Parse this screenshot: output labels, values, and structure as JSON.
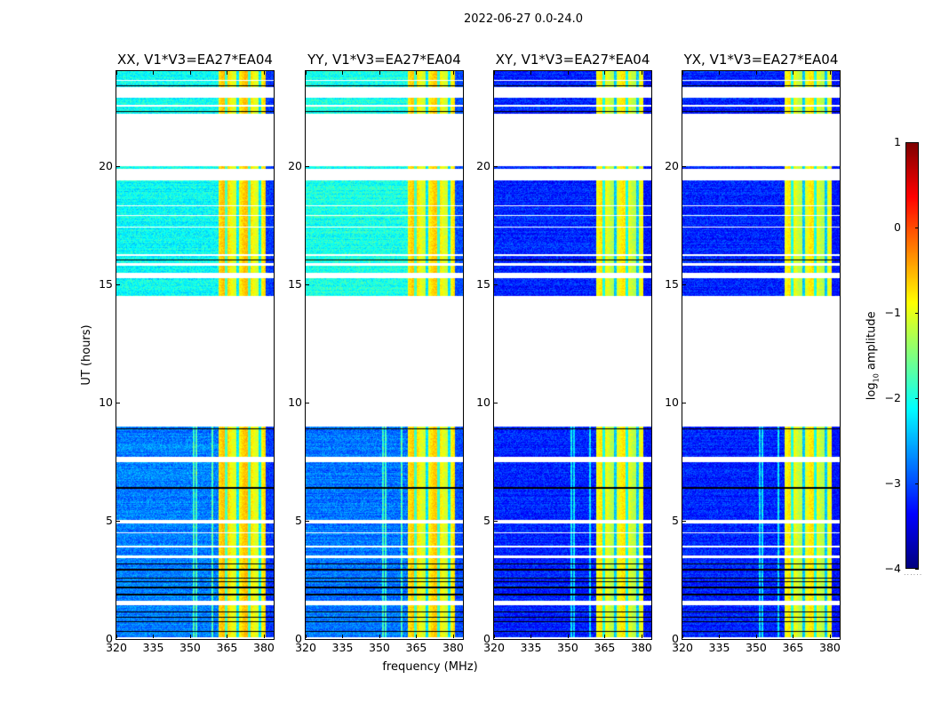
{
  "chart_data": {
    "type": "heatmap",
    "suptitle": "2022-06-27 0.0-24.0",
    "xlabel": "frequency (MHz)",
    "ylabel": "UT (hours)",
    "xlim": [
      320,
      384
    ],
    "ylim": [
      0,
      24
    ],
    "xticks": [
      "320",
      "335",
      "350",
      "365",
      "380"
    ],
    "xtick_values": [
      320,
      335,
      350,
      365,
      380
    ],
    "yticks": [
      "0",
      "5",
      "10",
      "15",
      "20"
    ],
    "ytick_values": [
      0,
      5,
      10,
      15,
      20
    ],
    "colorbar": {
      "label_main": "log",
      "label_sub": "10",
      "label_rest": " amplitude",
      "range": [
        -4,
        1
      ],
      "ticks": [
        "−4",
        "−3",
        "−2",
        "−1",
        "0",
        "1"
      ],
      "tick_values": [
        -4,
        -3,
        -2,
        -1,
        0,
        1
      ],
      "colormap": "jet",
      "footer": "......"
    },
    "data_segments_hours": [
      [
        0.1,
        1.45
      ],
      [
        1.65,
        3.45
      ],
      [
        3.55,
        3.9
      ],
      [
        3.95,
        4.9
      ],
      [
        5.05,
        7.5
      ],
      [
        7.7,
        9.0
      ],
      [
        14.5,
        15.25
      ],
      [
        15.5,
        15.8
      ],
      [
        15.9,
        16.2
      ],
      [
        16.3,
        19.4
      ],
      [
        19.9,
        20.0
      ],
      [
        22.2,
        22.5
      ],
      [
        22.6,
        22.9
      ],
      [
        23.35,
        24.0
      ]
    ],
    "white_gaps_hours": [
      [
        3.5,
        3.55
      ],
      [
        4.5,
        4.52
      ],
      [
        5.9,
        5.92
      ],
      [
        17.4,
        17.45
      ],
      [
        17.9,
        17.93
      ],
      [
        18.3,
        18.33
      ],
      [
        23.6,
        23.65
      ]
    ],
    "flag_lines_hours": [
      0.35,
      0.75,
      0.95,
      1.15,
      1.9,
      2.2,
      2.45,
      2.6,
      2.95,
      3.2,
      4.95,
      6.4,
      8.9,
      16.25,
      16.05,
      22.9,
      22.3,
      23.4
    ],
    "bright_band_mhz": [
      361.5,
      380.5
    ],
    "band_channel_lines_mhz": [
      364.5,
      369.2,
      373.8,
      378.2
    ],
    "rfi_lines_mhz": [
      351.2,
      352.5,
      358.8
    ],
    "panels": [
      {
        "title": "XX, V1*V3=EA27*EA04",
        "base_log_amp": -2.75,
        "late_base_log_amp": -2.1,
        "band_log_amp": -0.8,
        "edge_log_amp": -3.1
      },
      {
        "title": "YY, V1*V3=EA27*EA04",
        "base_log_amp": -2.8,
        "late_base_log_amp": -2.0,
        "band_log_amp": -0.85,
        "edge_log_amp": -3.0
      },
      {
        "title": "XY, V1*V3=EA27*EA04",
        "base_log_amp": -3.2,
        "late_base_log_amp": -3.2,
        "band_log_amp": -1.0,
        "edge_log_amp": -3.3
      },
      {
        "title": "YX, V1*V3=EA27*EA04",
        "base_log_amp": -3.2,
        "late_base_log_amp": -3.2,
        "band_log_amp": -1.0,
        "edge_log_amp": -3.3
      }
    ]
  }
}
